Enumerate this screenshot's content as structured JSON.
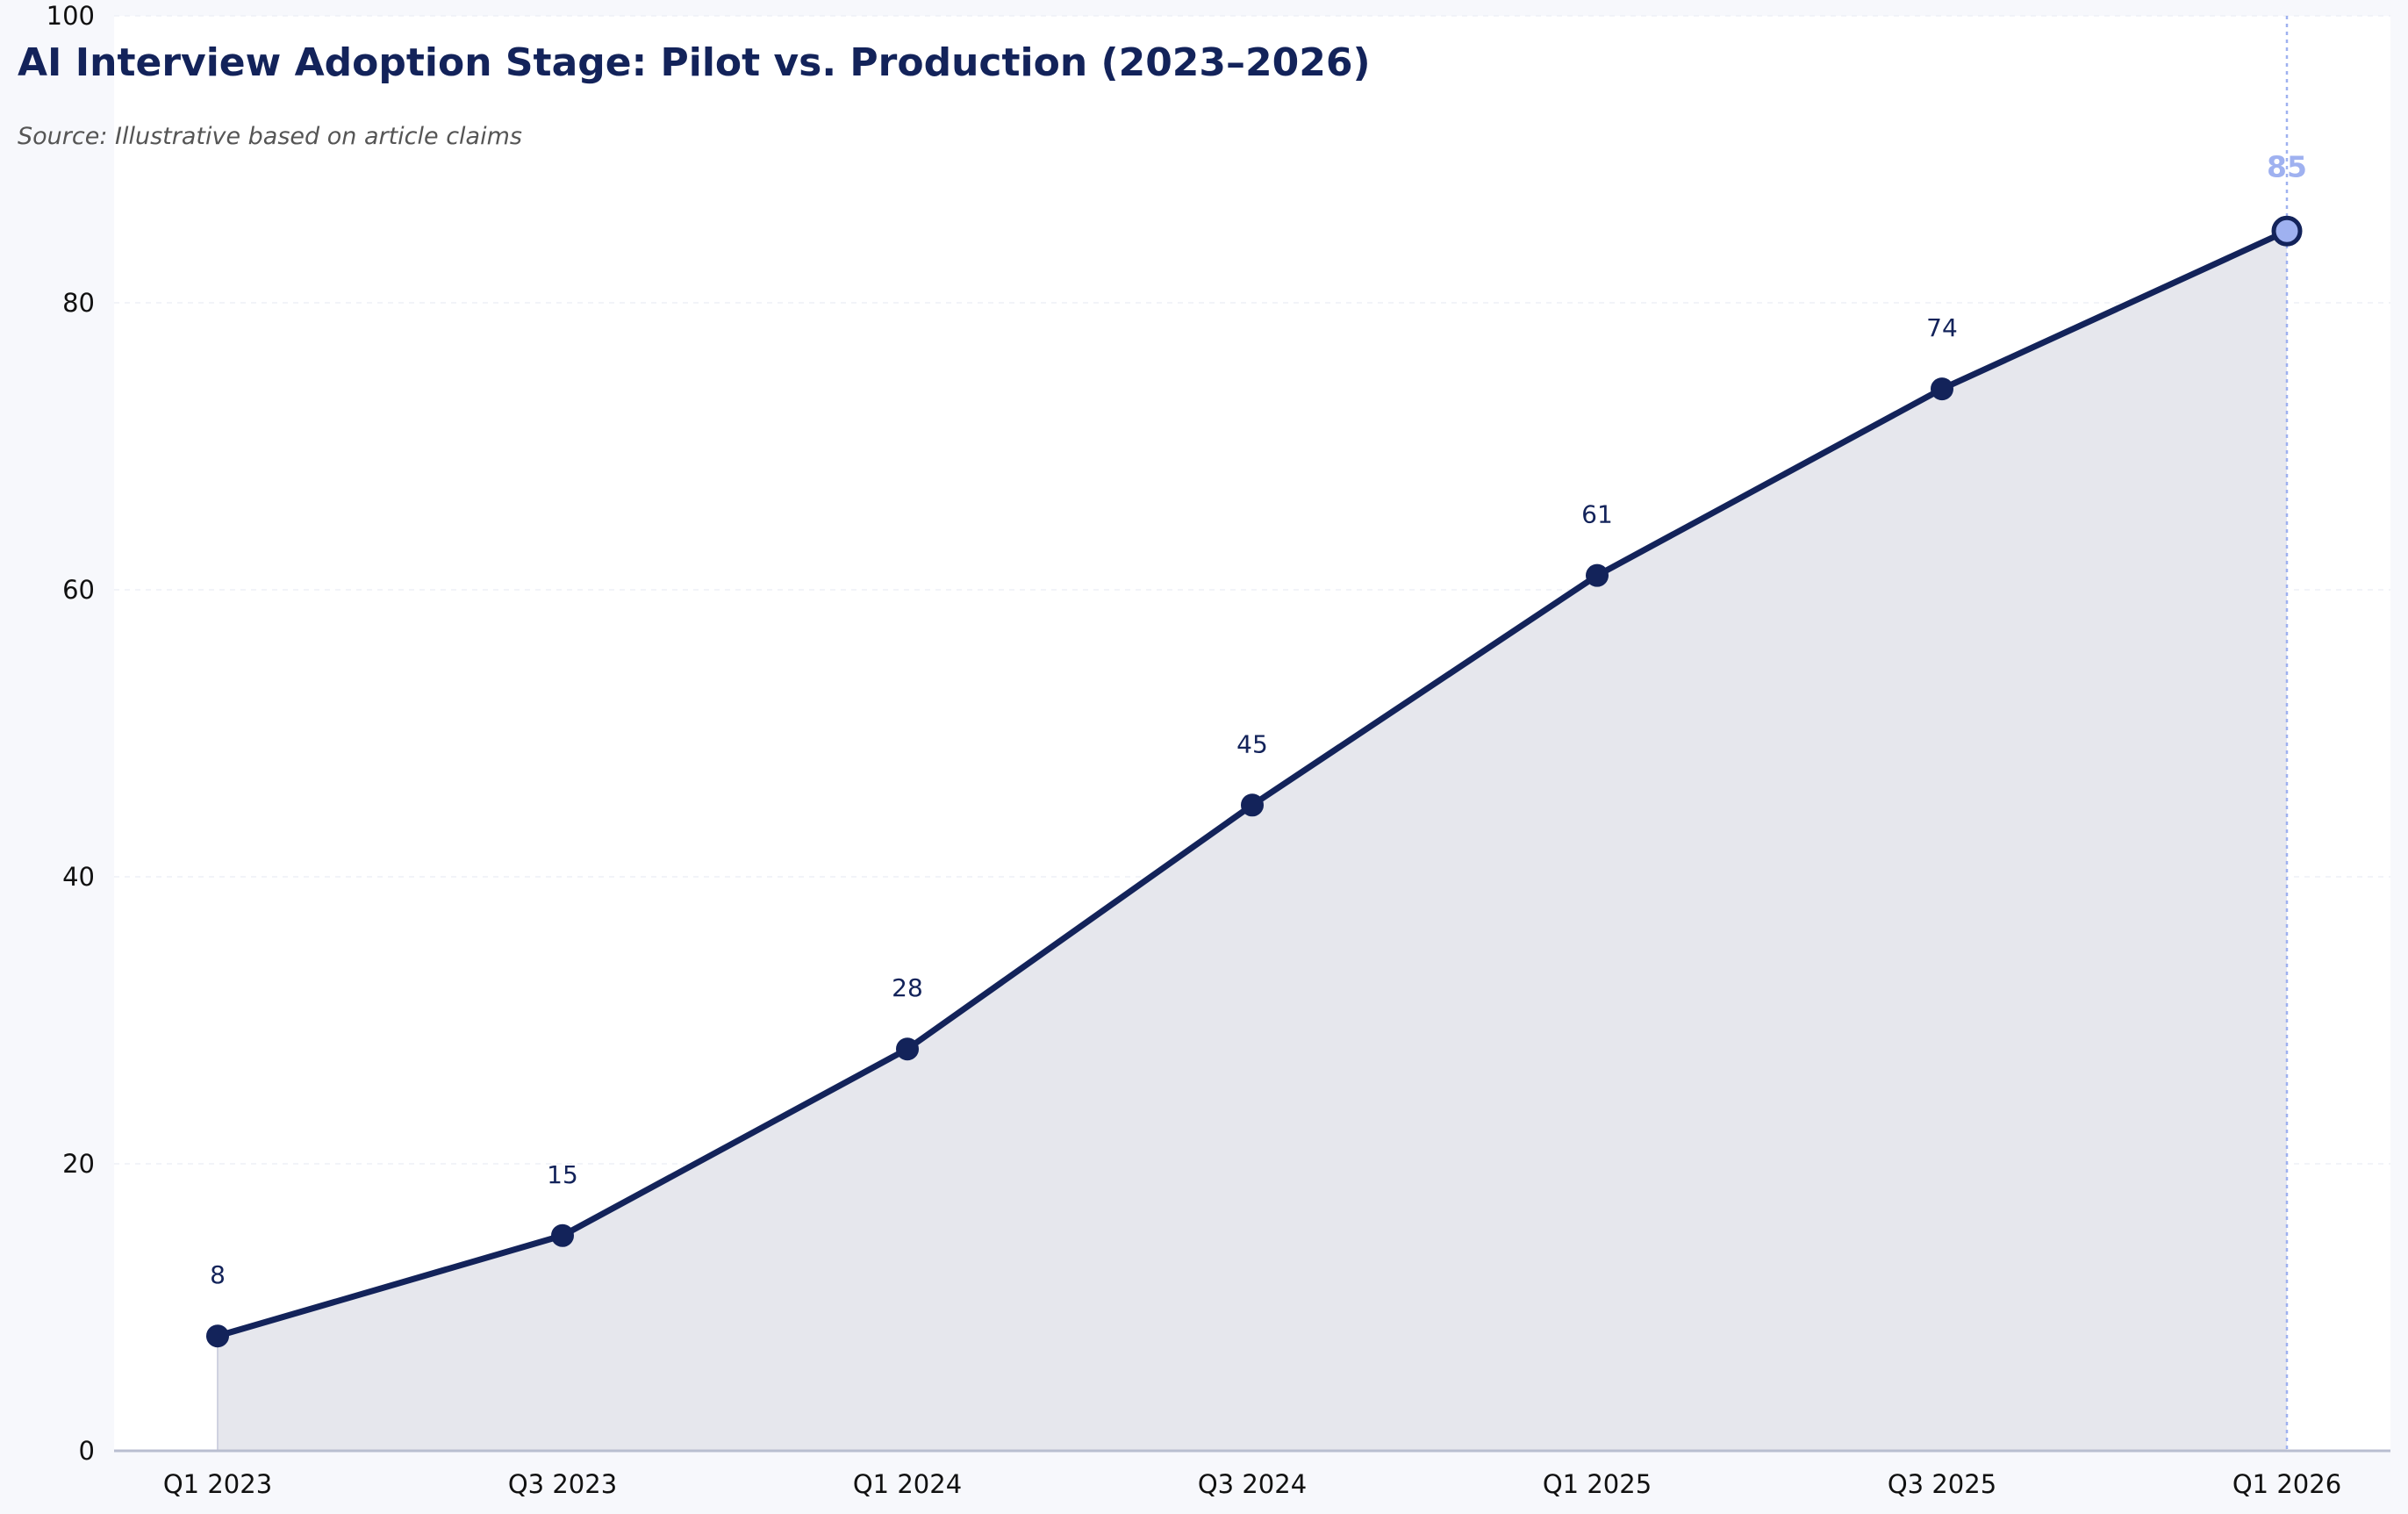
{
  "chart_data": {
    "type": "area",
    "title": "AI Interview Adoption Stage: Pilot vs. Production (2023–2026)",
    "subtitle": "Source: Illustrative based on article claims",
    "categories": [
      "Q1 2023",
      "Q3 2023",
      "Q1 2024",
      "Q3 2024",
      "Q1 2025",
      "Q3 2025",
      "Q1 2026"
    ],
    "series": [
      {
        "values": [
          8,
          15,
          28,
          45,
          61,
          74,
          85
        ]
      }
    ],
    "data_labels": [
      "8",
      "15",
      "28",
      "45",
      "61",
      "74",
      "85"
    ],
    "highlight_category": "Q1 2026",
    "xlabel": "",
    "ylabel": "",
    "ylim": [
      0,
      100
    ],
    "yticks": [
      0,
      20,
      40,
      60,
      80,
      100
    ],
    "ytick_labels": [
      "0",
      "20",
      "40",
      "60",
      "80",
      "100"
    ],
    "grid": true,
    "legend": "none",
    "colors": {
      "page_background": "#f7f8fc",
      "plot_background": "#ffffff",
      "line": "#13235a",
      "area_fill": "#e6e7ed",
      "highlight": "#9fb1f0",
      "grid": "#eef0f6",
      "axis": "#b9bed0",
      "title": "#13235a",
      "subtitle": "#555555",
      "tick_text": "#111111",
      "data_label": "#13235a"
    }
  }
}
